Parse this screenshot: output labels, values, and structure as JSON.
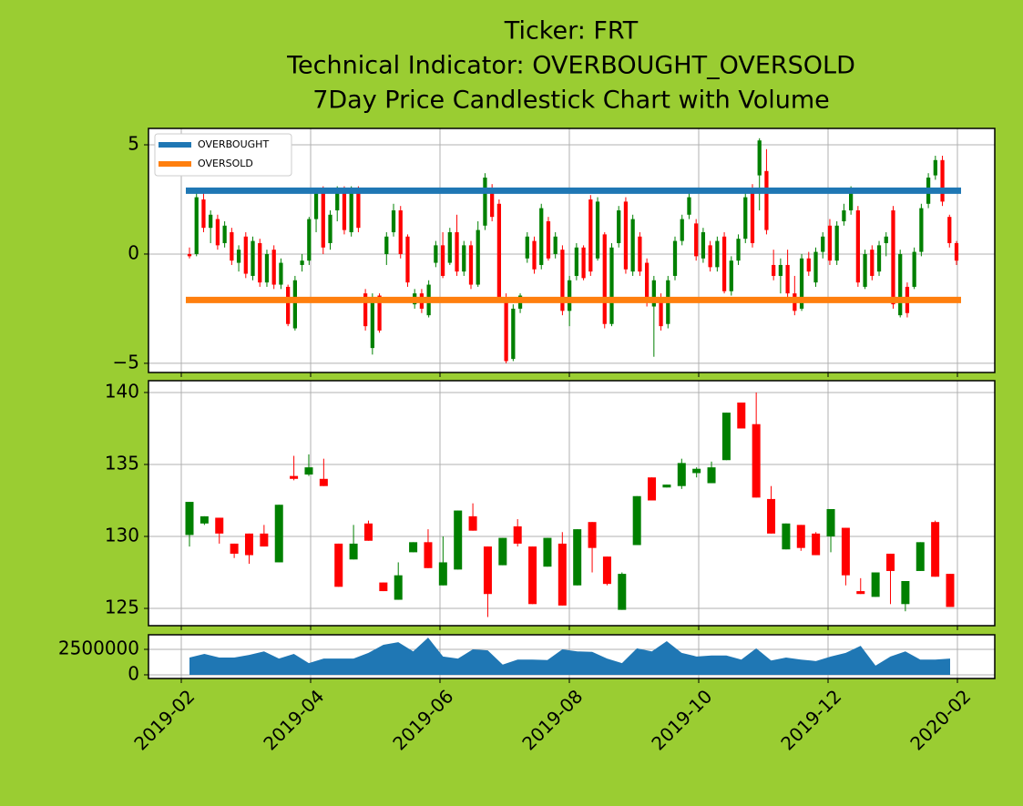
{
  "chart_data": [
    {
      "type": "candlestick",
      "title": [
        "Ticker: FRT",
        "Technical Indicator: OVERBOUGHT_OVERSOLD",
        "7Day Price Candlestick Chart with Volume"
      ],
      "up_color": "green",
      "down_color": "red",
      "open": [
        0,
        0,
        2.5,
        1.2,
        1.6,
        0.5,
        1.0,
        -0.4,
        0.8,
        -1.0,
        0.5,
        -1.3,
        0.2,
        -1.4,
        -1.5,
        -3.4,
        -0.5,
        -0.3,
        1.6,
        2.8,
        0.5,
        2.0,
        3.0,
        1.0,
        3.0,
        -1.8,
        -4.3,
        -1.9,
        0.0,
        1.0,
        2.0,
        0.8,
        -2.3,
        -1.8,
        -2.8,
        -0.4,
        0.4,
        -0.4,
        1.0,
        -0.8,
        0.4,
        -1.4,
        1.3,
        3.0,
        2.3,
        -2.0,
        -4.8,
        -2.5,
        -0.2,
        0.6,
        -0.5,
        1.5,
        0.0,
        0.2,
        -2.6,
        -1.0,
        0.3,
        2.5,
        -0.2,
        0.9,
        -3.2,
        0.5,
        2.4,
        -0.8,
        0.8,
        -0.4,
        -2.4,
        -2.0,
        -3.2,
        -1.0,
        0.6,
        1.8,
        1.4,
        -0.2,
        0.4,
        -0.6,
        0.8,
        -1.7,
        -0.3,
        0.7,
        2.8,
        3.6,
        3.8,
        -0.5,
        -1.0,
        -0.5,
        -1.8,
        -2.5,
        -0.2,
        -1.3,
        0.1,
        1.3,
        -0.3,
        1.5,
        2.0,
        2.0,
        -1.5,
        0.2,
        -0.8,
        0.5,
        2.0,
        -2.8,
        -1.5,
        -1.5,
        0.1,
        2.3,
        3.6,
        4.3,
        1.7,
        0.5
      ],
      "high": [
        0.3,
        2.9,
        2.9,
        2.0,
        1.8,
        1.5,
        1.2,
        0.4,
        1.0,
        0.8,
        0.7,
        0.2,
        0.4,
        -0.2,
        -1.4,
        -1.0,
        0.0,
        1.7,
        3.0,
        3.1,
        2.0,
        3.1,
        3.1,
        3.1,
        3.1,
        -1.6,
        -1.8,
        -1.8,
        1.0,
        2.3,
        2.2,
        0.9,
        -1.6,
        -1.6,
        -1.2,
        0.6,
        1.0,
        1.2,
        1.8,
        0.6,
        0.6,
        1.5,
        3.7,
        3.2,
        2.5,
        -1.8,
        -2.3,
        -1.8,
        1.0,
        0.8,
        2.3,
        1.7,
        1.0,
        0.4,
        -1.0,
        0.5,
        0.4,
        2.7,
        2.6,
        1.0,
        0.5,
        2.2,
        2.6,
        1.8,
        1.0,
        -0.2,
        -1.0,
        -1.8,
        -1.0,
        0.8,
        1.8,
        2.8,
        1.6,
        1.2,
        0.6,
        0.8,
        1.0,
        -0.1,
        0.9,
        2.8,
        3.2,
        5.3,
        4.8,
        0.2,
        -0.2,
        0.2,
        -1.0,
        0.0,
        0.1,
        0.3,
        1.0,
        1.6,
        1.5,
        2.3,
        3.1,
        2.2,
        0.2,
        0.4,
        0.6,
        1.0,
        2.2,
        0.2,
        -1.3,
        0.3,
        2.3,
        3.7,
        4.5,
        4.5,
        1.8,
        0.6
      ],
      "low": [
        -0.2,
        -0.1,
        1.0,
        0.5,
        0.2,
        0.3,
        -0.5,
        -0.8,
        -1.1,
        -1.2,
        -1.5,
        -1.5,
        -1.6,
        -1.6,
        -3.3,
        -3.5,
        -0.8,
        -0.5,
        1.0,
        0.0,
        0.2,
        1.5,
        0.9,
        0.8,
        1.0,
        -3.5,
        -4.6,
        -3.6,
        -0.5,
        0.8,
        -0.2,
        -1.5,
        -2.5,
        -2.7,
        -2.9,
        -0.6,
        -1.1,
        -0.5,
        -1.0,
        -1.0,
        -1.6,
        -1.5,
        1.1,
        1.5,
        -2.1,
        -5.0,
        -4.9,
        -2.7,
        -0.4,
        -0.9,
        -0.7,
        -0.3,
        -0.2,
        -2.8,
        -3.3,
        -1.2,
        -1.2,
        -1.0,
        -0.3,
        -3.4,
        -3.3,
        0.3,
        -0.9,
        -1.0,
        -1.0,
        -2.4,
        -4.7,
        -3.5,
        -3.4,
        -1.2,
        0.4,
        1.6,
        -0.3,
        -0.4,
        -0.8,
        -0.8,
        -1.8,
        -1.9,
        -0.5,
        0.5,
        0.3,
        2.0,
        0.9,
        -1.2,
        -1.8,
        -2.0,
        -2.8,
        -2.6,
        -1.0,
        -1.5,
        -0.2,
        -0.5,
        -0.5,
        1.3,
        1.8,
        -1.5,
        -1.6,
        -1.2,
        -1.0,
        -0.1,
        -2.5,
        -2.9,
        -2.9,
        -1.6,
        -0.1,
        2.1,
        3.4,
        2.2,
        0.3,
        -0.5
      ],
      "close": [
        -0.1,
        2.6,
        1.2,
        1.8,
        0.4,
        1.3,
        -0.3,
        0.2,
        -0.9,
        0.6,
        -1.3,
        0.0,
        -1.4,
        -0.4,
        -3.2,
        -1.2,
        -0.3,
        1.6,
        2.8,
        0.3,
        1.8,
        2.8,
        1.1,
        2.9,
        1.2,
        -3.3,
        -2.0,
        -3.5,
        0.8,
        2.0,
        0.0,
        -1.3,
        -1.8,
        -2.5,
        -1.4,
        0.4,
        -1.0,
        1.0,
        -0.8,
        0.4,
        -1.4,
        1.1,
        3.5,
        1.7,
        -2.0,
        -4.9,
        -2.5,
        -1.9,
        0.8,
        -0.7,
        2.1,
        -0.2,
        0.8,
        -2.6,
        -1.2,
        0.3,
        -1.1,
        -0.8,
        2.4,
        -3.2,
        0.3,
        2.0,
        -0.7,
        1.6,
        -0.8,
        -2.2,
        -1.2,
        -3.3,
        -1.2,
        0.6,
        1.6,
        2.6,
        -0.1,
        1.0,
        -0.6,
        0.6,
        -1.7,
        -0.3,
        0.7,
        2.6,
        0.5,
        5.2,
        1.1,
        -1.0,
        -0.5,
        -1.8,
        -2.6,
        -0.2,
        -0.8,
        0.1,
        0.8,
        -0.3,
        1.3,
        2.0,
        2.9,
        -1.3,
        0.0,
        -1.0,
        0.4,
        0.8,
        -2.3,
        0.0,
        -2.7,
        0.1,
        2.1,
        3.5,
        4.3,
        2.4,
        0.5,
        -0.3
      ],
      "series": [
        {
          "name": "OVERBOUGHT",
          "color": "#1f77b4",
          "value": 2.9
        },
        {
          "name": "OVERSOLD",
          "color": "#ff7f0e",
          "value": -2.1
        }
      ],
      "legend": "upper left",
      "ylim": [
        -5.42,
        5.75
      ],
      "yticks": [
        {
          "value": -5,
          "label": "−5"
        },
        0,
        5
      ],
      "grid": true
    },
    {
      "type": "candlestick",
      "up_color": "green",
      "down_color": "red",
      "open": [
        130.1,
        130.9,
        131.3,
        129.5,
        130.2,
        130.2,
        128.2,
        134.2,
        134.3,
        134.0,
        129.5,
        128.4,
        130.9,
        126.8,
        125.6,
        128.9,
        129.6,
        126.6,
        127.7,
        131.4,
        129.3,
        128.0,
        130.7,
        129.3,
        127.9,
        129.5,
        126.6,
        131.0,
        128.6,
        124.9,
        129.4,
        134.1,
        133.4,
        133.5,
        134.4,
        133.7,
        135.3,
        139.3,
        137.8,
        132.6,
        129.1,
        130.8,
        130.2,
        130.0,
        130.6,
        126.2,
        125.8,
        128.8,
        125.3,
        127.6,
        131.0,
        127.4
      ],
      "high": [
        132.4,
        131.4,
        131.3,
        129.5,
        130.2,
        130.8,
        132.2,
        135.6,
        135.7,
        135.4,
        129.5,
        130.8,
        131.1,
        126.8,
        128.2,
        129.6,
        130.5,
        130.0,
        131.8,
        132.3,
        129.3,
        129.9,
        131.2,
        129.3,
        129.9,
        130.3,
        130.5,
        131.0,
        128.6,
        127.5,
        132.8,
        134.1,
        133.6,
        135.4,
        134.8,
        135.2,
        138.6,
        139.3,
        140.0,
        133.5,
        130.9,
        130.8,
        130.3,
        131.9,
        130.6,
        127.1,
        127.5,
        128.8,
        126.9,
        129.6,
        131.1,
        127.4
      ],
      "low": [
        129.3,
        130.8,
        129.5,
        128.5,
        128.1,
        129.3,
        128.2,
        133.9,
        134.2,
        133.5,
        126.5,
        128.4,
        129.7,
        126.2,
        125.6,
        128.9,
        127.8,
        126.6,
        127.7,
        130.4,
        124.4,
        128.0,
        129.3,
        125.3,
        127.9,
        125.2,
        126.6,
        127.5,
        126.6,
        124.9,
        129.4,
        132.5,
        133.4,
        133.3,
        134.1,
        133.7,
        135.3,
        137.5,
        132.7,
        130.2,
        129.1,
        129.0,
        128.7,
        128.9,
        126.6,
        126.0,
        125.8,
        125.3,
        124.8,
        127.6,
        127.2,
        125.1
      ],
      "close": [
        132.4,
        131.4,
        130.2,
        128.8,
        128.7,
        129.3,
        132.2,
        134.0,
        134.8,
        133.5,
        126.5,
        129.5,
        129.7,
        126.2,
        127.3,
        129.6,
        127.8,
        128.2,
        131.8,
        130.4,
        126.0,
        129.9,
        129.5,
        125.3,
        129.9,
        125.2,
        130.5,
        129.2,
        126.7,
        127.4,
        132.8,
        132.5,
        133.6,
        135.1,
        134.7,
        134.8,
        138.6,
        137.5,
        132.7,
        130.2,
        130.9,
        129.2,
        128.7,
        131.9,
        127.3,
        126.0,
        127.5,
        127.6,
        126.9,
        129.6,
        127.2,
        125.1
      ],
      "ylim": [
        123.8,
        140.82
      ],
      "yticks": [
        125,
        130,
        135,
        140
      ],
      "grid": true
    },
    {
      "type": "area",
      "color": "#1f77b4",
      "values": [
        1700000,
        2050000,
        1700000,
        1700000,
        1950000,
        2300000,
        1600000,
        2050000,
        1150000,
        1600000,
        1600000,
        1600000,
        2150000,
        2950000,
        3200000,
        2300000,
        3650000,
        1800000,
        1600000,
        2500000,
        2400000,
        1000000,
        1500000,
        1500000,
        1450000,
        2500000,
        2300000,
        2250000,
        1600000,
        1150000,
        2600000,
        2300000,
        3300000,
        2150000,
        1800000,
        1900000,
        1900000,
        1500000,
        2600000,
        1400000,
        1700000,
        1500000,
        1350000,
        1800000,
        2150000,
        2850000,
        900000,
        1800000,
        2300000,
        1500000,
        1500000,
        1600000
      ],
      "ylim": [
        -360000,
        3930000
      ],
      "yticks": [
        0,
        2500000
      ],
      "grid": true,
      "xticks": [
        "2019-02",
        "2019-04",
        "2019-06",
        "2019-08",
        "2019-10",
        "2019-12",
        "2020-02"
      ]
    }
  ]
}
